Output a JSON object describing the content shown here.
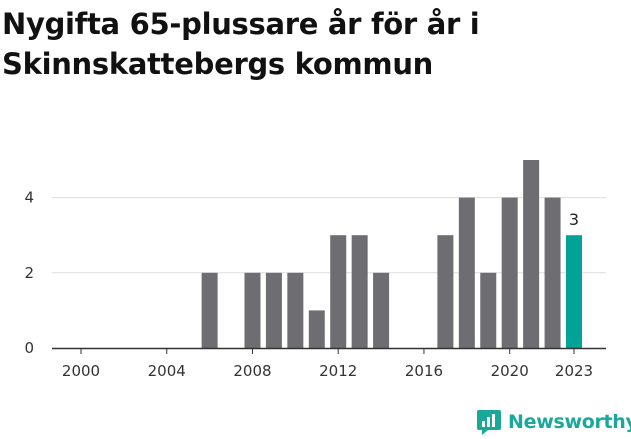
{
  "chart_data": {
    "type": "bar",
    "title": "Nygifta 65-plussare år för år i Skinnskattebergs kommun",
    "xlabel": "",
    "ylabel": "",
    "x": [
      2000,
      2001,
      2002,
      2003,
      2004,
      2005,
      2006,
      2007,
      2008,
      2009,
      2010,
      2011,
      2012,
      2013,
      2014,
      2015,
      2016,
      2017,
      2018,
      2019,
      2020,
      2021,
      2022,
      2023
    ],
    "values": [
      0,
      0,
      0,
      0,
      0,
      0,
      2,
      0,
      2,
      2,
      2,
      1,
      3,
      3,
      2,
      0,
      0,
      3,
      4,
      2,
      4,
      5,
      4,
      3
    ],
    "x_ticks": [
      "2000",
      "2004",
      "2008",
      "2012",
      "2016",
      "2020",
      "2023"
    ],
    "y_ticks": [
      "0",
      "2",
      "4"
    ],
    "ylim": [
      0,
      5
    ],
    "grid": true,
    "highlight": {
      "x": 2023,
      "value_label": "3"
    },
    "colors": {
      "bar": "#6e6d72",
      "highlight": "#00a396",
      "grid": "#dddddd"
    }
  },
  "branding": {
    "name": "Newsworthy",
    "color": "#1aa89a"
  }
}
